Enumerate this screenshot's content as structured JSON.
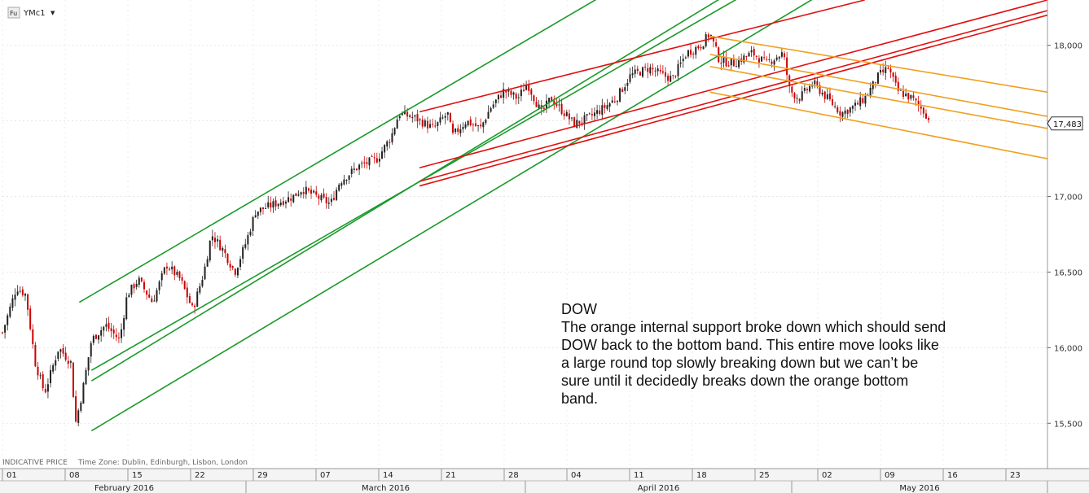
{
  "header": {
    "symbol_badge": "Fu",
    "symbol": "YMc1",
    "dropdown_glyph": "▼"
  },
  "footer": {
    "indicative": "INDICATIVE PRICE",
    "timezone": "Time Zone: Dublin, Edinburgh, Lisbon, London"
  },
  "colors": {
    "up_candle": "#222222",
    "down_candle": "#cc0000",
    "green_channel": "#1a9a2a",
    "red_channel": "#e01010",
    "orange_channel": "#f0a020",
    "grid": "#d8d8d8"
  },
  "annotation": {
    "title": "DOW",
    "lines": [
      "The orange internal support broke down which should send",
      "DOW back to the bottom band. This entire move looks like",
      "a large round top slowly breaking down but we can’t be",
      "sure until it decidedly breaks down the orange bottom",
      "band."
    ]
  },
  "chart_data": {
    "type": "candlestick",
    "title": "",
    "xlabel": "",
    "ylabel": "",
    "ylim": [
      15200,
      18300
    ],
    "y_ticks": [
      15500,
      16000,
      16500,
      17000,
      17500,
      18000
    ],
    "y_tick_labels": [
      "15,500",
      "16,000",
      "16,500",
      "17,000",
      "",
      "18,000"
    ],
    "last_price": 17483,
    "last_price_label": "17,483",
    "x_ticks": [
      "01",
      "08",
      "15",
      "22",
      "29",
      "07",
      "14",
      "21",
      "28",
      "04",
      "11",
      "18",
      "25",
      "02",
      "09",
      "16",
      "23"
    ],
    "months": [
      "February 2016",
      "March 2016",
      "April 2016",
      "May 2016"
    ],
    "grid": true,
    "price_path": [
      [
        0,
        16100
      ],
      [
        1.5,
        16400
      ],
      [
        2.5,
        16350
      ],
      [
        3.5,
        15900
      ],
      [
        4.5,
        15700
      ],
      [
        6,
        16000
      ],
      [
        7.3,
        15900
      ],
      [
        7.8,
        15500
      ],
      [
        8.5,
        15700
      ],
      [
        9.5,
        16050
      ],
      [
        11,
        16150
      ],
      [
        12.5,
        16050
      ],
      [
        13.3,
        16350
      ],
      [
        14.5,
        16450
      ],
      [
        16,
        16300
      ],
      [
        17.5,
        16550
      ],
      [
        19,
        16450
      ],
      [
        20.3,
        16250
      ],
      [
        21.5,
        16500
      ],
      [
        22.3,
        16750
      ],
      [
        23.5,
        16650
      ],
      [
        24.8,
        16500
      ],
      [
        26,
        16700
      ],
      [
        27,
        16900
      ],
      [
        29,
        16950
      ],
      [
        31,
        17000
      ],
      [
        32,
        17050
      ],
      [
        33.5,
        17000
      ],
      [
        35,
        16950
      ],
      [
        36,
        17100
      ],
      [
        38,
        17200
      ],
      [
        40,
        17250
      ],
      [
        41.5,
        17400
      ],
      [
        42.3,
        17550
      ],
      [
        44,
        17520
      ],
      [
        46,
        17450
      ],
      [
        47.5,
        17550
      ],
      [
        48,
        17400
      ],
      [
        49.5,
        17500
      ],
      [
        51,
        17450
      ],
      [
        52,
        17580
      ],
      [
        53.5,
        17700
      ],
      [
        55,
        17650
      ],
      [
        56,
        17750
      ],
      [
        57.5,
        17550
      ],
      [
        58.5,
        17650
      ],
      [
        60,
        17550
      ],
      [
        61,
        17480
      ],
      [
        62.5,
        17520
      ],
      [
        64,
        17580
      ],
      [
        65.5,
        17650
      ],
      [
        67,
        17800
      ],
      [
        69,
        17850
      ],
      [
        70.5,
        17800
      ],
      [
        71.5,
        17780
      ],
      [
        73,
        17950
      ],
      [
        74.5,
        18000
      ],
      [
        75.5,
        18080
      ],
      [
        76.5,
        17900
      ],
      [
        78,
        17880
      ],
      [
        80,
        17950
      ],
      [
        81.5,
        17880
      ],
      [
        82.5,
        17920
      ],
      [
        83.3,
        17950
      ],
      [
        84,
        17700
      ],
      [
        85,
        17650
      ],
      [
        86.5,
        17750
      ],
      [
        88,
        17650
      ],
      [
        89.5,
        17550
      ],
      [
        91,
        17600
      ],
      [
        92,
        17650
      ],
      [
        93.5,
        17800
      ],
      [
        94.5,
        17850
      ],
      [
        95.5,
        17700
      ],
      [
        97,
        17650
      ],
      [
        98.5,
        17550
      ],
      [
        99,
        17483
      ]
    ],
    "series": [
      {
        "name": "green-upper",
        "color": "#1a9a2a",
        "points": [
          [
            8.2,
            16300
          ],
          [
            66,
            18400
          ]
        ]
      },
      {
        "name": "green-mid-1",
        "color": "#1a9a2a",
        "points": [
          [
            9.5,
            15780
          ],
          [
            79,
            18400
          ]
        ]
      },
      {
        "name": "green-mid-2",
        "color": "#1a9a2a",
        "points": [
          [
            9.5,
            15850
          ],
          [
            81,
            18400
          ]
        ]
      },
      {
        "name": "green-lower",
        "color": "#1a9a2a",
        "points": [
          [
            9.5,
            15450
          ],
          [
            89,
            18400
          ]
        ]
      },
      {
        "name": "red-upper",
        "color": "#e01010",
        "points": [
          [
            44.5,
            17560
          ],
          [
            92,
            18300
          ]
        ]
      },
      {
        "name": "red-mid",
        "color": "#e01010",
        "points": [
          [
            44.5,
            17190
          ],
          [
            111.5,
            18300
          ]
        ]
      },
      {
        "name": "red-low-1",
        "color": "#e01010",
        "points": [
          [
            44.5,
            17100
          ],
          [
            111.5,
            18230
          ]
        ]
      },
      {
        "name": "red-low-2",
        "color": "#e01010",
        "points": [
          [
            44.5,
            17070
          ],
          [
            111.5,
            18200
          ]
        ]
      },
      {
        "name": "orange-upper",
        "color": "#f0a020",
        "points": [
          [
            75.5,
            18060
          ],
          [
            111.5,
            17690
          ]
        ]
      },
      {
        "name": "orange-mid-1",
        "color": "#f0a020",
        "points": [
          [
            75.5,
            17940
          ],
          [
            111.5,
            17530
          ]
        ]
      },
      {
        "name": "orange-mid-2",
        "color": "#f0a020",
        "points": [
          [
            75.5,
            17860
          ],
          [
            111.5,
            17450
          ]
        ]
      },
      {
        "name": "orange-lower",
        "color": "#f0a020",
        "points": [
          [
            75.5,
            17690
          ],
          [
            111.5,
            17250
          ]
        ]
      }
    ],
    "x_range": [
      0,
      111.5
    ]
  }
}
